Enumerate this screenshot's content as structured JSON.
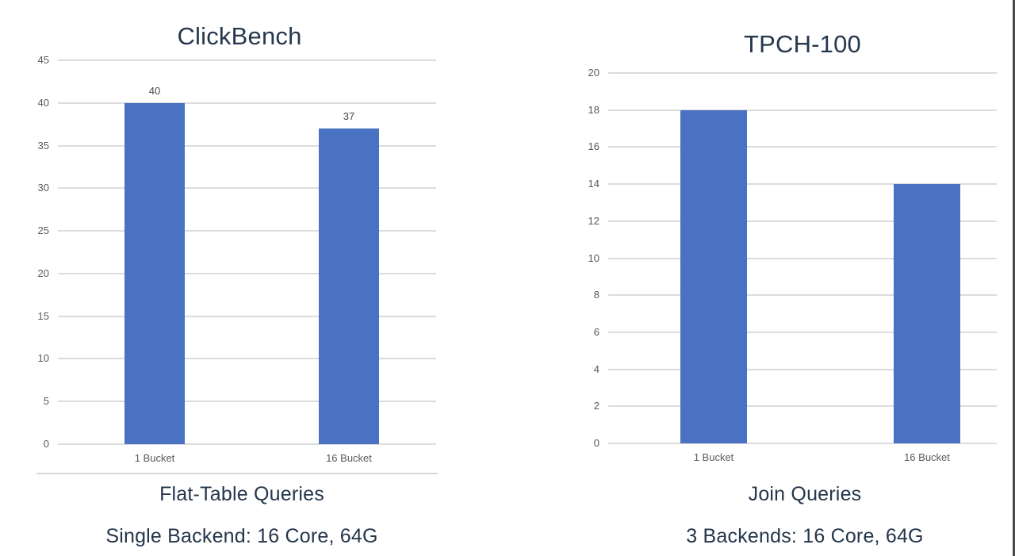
{
  "chart_data": [
    {
      "type": "bar",
      "title": "ClickBench",
      "categories": [
        "1 Bucket",
        "16 Bucket"
      ],
      "values": [
        40,
        37
      ],
      "data_labels": [
        "40",
        "37"
      ],
      "show_value_labels": true,
      "ylim": [
        0,
        45
      ],
      "ytick_step": 5,
      "ytick_labels": [
        "45",
        "40",
        "35",
        "30",
        "25",
        "20",
        "15",
        "10",
        "5",
        "0"
      ],
      "grid": true,
      "legend": "none",
      "bar_color": "#4a72c2",
      "captions": [
        "Flat-Table Queries",
        "Single Backend: 16 Core, 64G"
      ]
    },
    {
      "type": "bar",
      "title": "TPCH-100",
      "categories": [
        "1 Bucket",
        "16 Bucket"
      ],
      "values": [
        18,
        14
      ],
      "data_labels": [],
      "show_value_labels": false,
      "ylim": [
        0,
        20
      ],
      "ytick_step": 2,
      "ytick_labels": [
        "20",
        "18",
        "16",
        "14",
        "12",
        "10",
        "8",
        "6",
        "4",
        "2",
        "0"
      ],
      "grid": true,
      "legend": "none",
      "bar_color": "#4a72c2",
      "captions": [
        "Join Queries",
        "3 Backends: 16 Core, 64G"
      ]
    }
  ],
  "colors": {
    "bar": "#4a72c2",
    "grid": "#dcdcdc",
    "tick_text": "#595959",
    "value_label_text": "#464646",
    "title_text": "#26384e",
    "caption_text": "#24364b",
    "window_edge": "#4b4b4b",
    "background": "#ffffff"
  }
}
